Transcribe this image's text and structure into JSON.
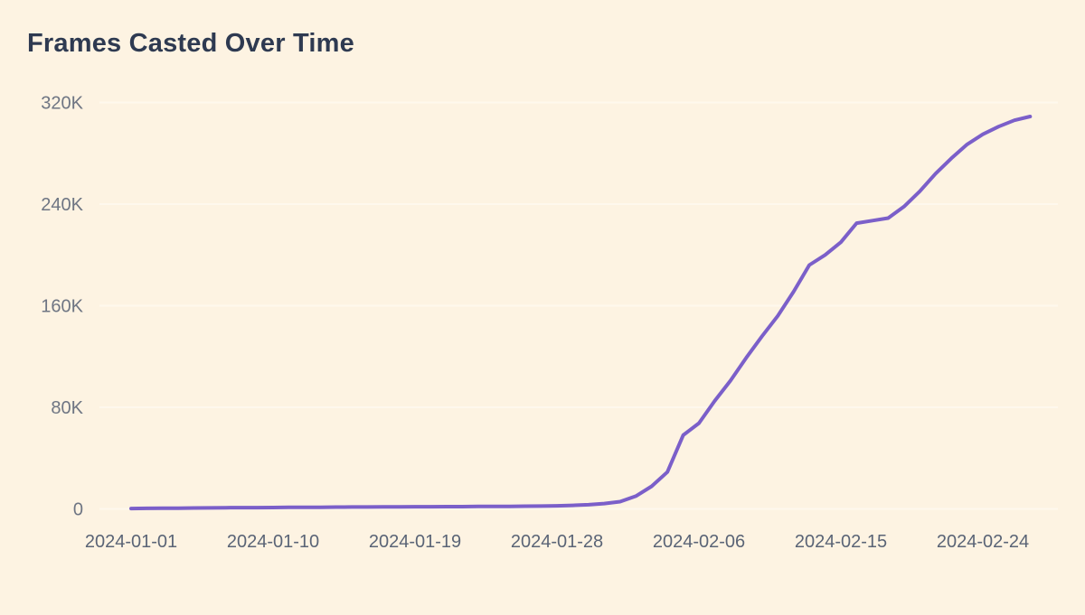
{
  "page": {
    "background_color": "#fdf3e2"
  },
  "chart_data": {
    "type": "line",
    "title": "Frames Casted Over Time",
    "xlabel": "",
    "ylabel": "",
    "grid": "horizontal",
    "legend": "none",
    "ylim": [
      0,
      320000
    ],
    "y_ticks": [
      {
        "label": "0",
        "value": 0
      },
      {
        "label": "80K",
        "value": 80000
      },
      {
        "label": "160K",
        "value": 160000
      },
      {
        "label": "240K",
        "value": 240000
      },
      {
        "label": "320K",
        "value": 320000
      }
    ],
    "x_ticks": [
      "2024-01-01",
      "2024-01-10",
      "2024-01-19",
      "2024-01-28",
      "2024-02-06",
      "2024-02-15",
      "2024-02-24"
    ],
    "series": [
      {
        "name": "Frames Casted",
        "color": "#7b5fc9",
        "x": [
          "2024-01-01",
          "2024-01-02",
          "2024-01-03",
          "2024-01-04",
          "2024-01-05",
          "2024-01-06",
          "2024-01-07",
          "2024-01-08",
          "2024-01-09",
          "2024-01-10",
          "2024-01-11",
          "2024-01-12",
          "2024-01-13",
          "2024-01-14",
          "2024-01-15",
          "2024-01-16",
          "2024-01-17",
          "2024-01-18",
          "2024-01-19",
          "2024-01-20",
          "2024-01-21",
          "2024-01-22",
          "2024-01-23",
          "2024-01-24",
          "2024-01-25",
          "2024-01-26",
          "2024-01-27",
          "2024-01-28",
          "2024-01-29",
          "2024-01-30",
          "2024-01-31",
          "2024-02-01",
          "2024-02-02",
          "2024-02-03",
          "2024-02-04",
          "2024-02-05",
          "2024-02-06",
          "2024-02-07",
          "2024-02-08",
          "2024-02-09",
          "2024-02-10",
          "2024-02-11",
          "2024-02-12",
          "2024-02-13",
          "2024-02-14",
          "2024-02-15",
          "2024-02-16",
          "2024-02-17",
          "2024-02-18",
          "2024-02-19",
          "2024-02-20",
          "2024-02-21",
          "2024-02-22",
          "2024-02-23",
          "2024-02-24",
          "2024-02-25",
          "2024-02-26",
          "2024-02-27"
        ],
        "values": [
          300,
          400,
          500,
          600,
          700,
          800,
          900,
          1000,
          1000,
          1100,
          1200,
          1300,
          1300,
          1400,
          1500,
          1500,
          1600,
          1600,
          1700,
          1700,
          1800,
          1800,
          1900,
          1900,
          2000,
          2100,
          2200,
          2400,
          2800,
          3300,
          4200,
          5700,
          10000,
          17800,
          29000,
          58000,
          67500,
          85000,
          101000,
          119000,
          136000,
          152000,
          171000,
          192000,
          200000,
          210000,
          225000,
          227000,
          229000,
          238000,
          250000,
          264000,
          276000,
          287000,
          295000,
          301000,
          306000,
          309000
        ]
      }
    ],
    "colors": {
      "background": "#fdf3e2",
      "line": "#7b5fc9",
      "gridline": "#fffaf0",
      "title_text": "#2e3a51",
      "y_tick_text": "#6e7583",
      "x_tick_text": "#5a6476"
    }
  }
}
